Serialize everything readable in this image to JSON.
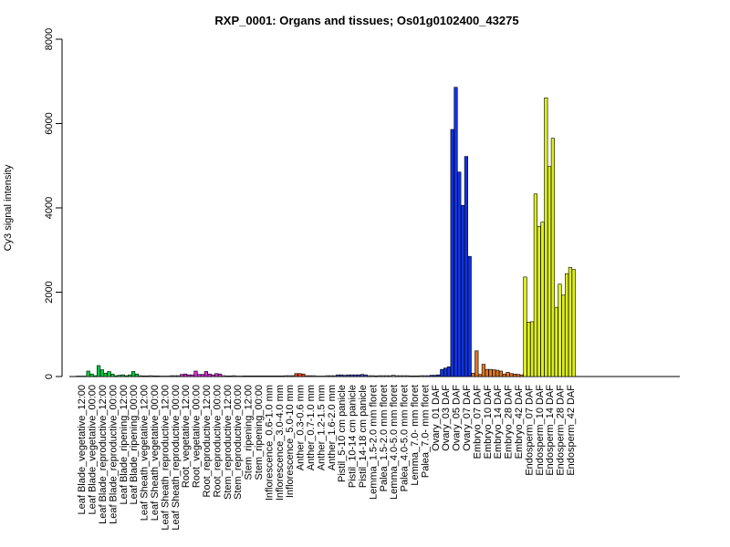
{
  "chart_data": {
    "type": "bar",
    "title": "RXP_0001: Organs and tissues; Os01g0102400_43275",
    "xlabel": "",
    "ylabel": "Cy3 signal intensity",
    "ylim": [
      0,
      8000
    ],
    "yticks": [
      0,
      2000,
      4000,
      6000,
      8000
    ],
    "grid": false,
    "legend": "none",
    "categories": [
      "Leaf Blade_vegetative_12:00",
      "Leaf Blade_vegetative_00:00",
      "Leaf Blade_reproductive_12:00",
      "Leaf Blade_reproductive_00:00",
      "Leaf Blade_ripening_12:00",
      "Leaf Blade_ripening_00:00",
      "Leaf Sheath_vegetative_12:00",
      "Leaf Sheath_vegetative_00:00",
      "Leaf Sheath_reproductive_12:00",
      "Leaf Sheath_reproductive_00:00",
      "Root_vegetative_12:00",
      "Root_vegetative_00:00",
      "Root_reproductive_12:00",
      "Root_reproductive_00:00",
      "Stem_reproductive_12:00",
      "Stem_reproductive_00:00",
      "Stem_ripening_12:00",
      "Stem_ripening_00:00",
      "Inflorescence_0.6-1.0 mm",
      "Inflorescence_3.0-4.0 mm",
      "Inflorescence_5.0-10 mm",
      "Anther_0.3-0.6 mm",
      "Anther_0.7-1.0 mm",
      "Anther_1.2-1.5 mm",
      "Anther_1.6-2.0 mm",
      "Pistil_5-10 cm panicle",
      "Pistil_10-14 cm panicle",
      "Pistil_14-18 cm panicle",
      "Lemma_1.5-2.0 mm floret",
      "Palea_1.5-2.0 mm floret",
      "Lemma_4.0-5.0 mm floret",
      "Palea_4.0-5.0 mm floret",
      "Lemma_7.0- mm floret",
      "Palea_7.0- mm floret",
      "Ovary_01 DAF",
      "Ovary_03 DAF",
      "Ovary_05 DAF",
      "Ovary_07 DAF",
      "Embryo_07 DAF",
      "Embryo_10 DAF",
      "Embryo_14 DAF",
      "Embryo_28 DAF",
      "Embryo_42 DAF",
      "Endosperm_07 DAF",
      "Endosperm_10 DAF",
      "Endosperm_14 DAF",
      "Endosperm_28 DAF",
      "Endosperm_42 DAF"
    ],
    "values": [
      [
        10,
        10,
        10
      ],
      [
        130,
        60,
        20
      ],
      [
        260,
        160,
        80
      ],
      [
        120,
        60,
        20
      ],
      [
        30,
        40,
        20
      ],
      [
        40,
        120,
        60
      ],
      [
        20,
        15,
        15
      ],
      [
        20,
        15,
        15
      ],
      [
        10,
        10,
        10
      ],
      [
        20,
        20,
        20
      ],
      [
        50,
        60,
        40
      ],
      [
        40,
        130,
        50
      ],
      [
        50,
        120,
        60
      ],
      [
        40,
        70,
        60
      ],
      [
        20,
        15,
        15
      ],
      [
        20,
        10,
        10
      ],
      [
        15,
        15,
        15
      ],
      [
        15,
        15,
        15
      ],
      [
        15,
        15,
        15
      ],
      [
        15,
        15,
        15
      ],
      [
        20,
        20,
        20
      ],
      [
        70,
        70,
        60
      ],
      [
        20,
        20,
        20
      ],
      [
        10,
        10,
        10
      ],
      [
        20,
        20,
        20
      ],
      [
        40,
        40,
        30
      ],
      [
        40,
        40,
        40
      ],
      [
        40,
        50,
        40
      ],
      [
        20,
        20,
        15
      ],
      [
        20,
        20,
        20
      ],
      [
        20,
        30,
        20
      ],
      [
        20,
        20,
        20
      ],
      [
        15,
        15,
        15
      ],
      [
        20,
        20,
        20
      ],
      [
        30,
        30,
        40
      ],
      [
        170,
        200,
        230
      ],
      [
        5860,
        6860,
        4850
      ],
      [
        4060,
        5220,
        2850
      ],
      [
        80,
        610,
        50
      ],
      [
        290,
        170,
        170
      ],
      [
        160,
        150,
        130
      ],
      [
        60,
        100,
        70
      ],
      [
        60,
        50,
        40
      ],
      [
        2360,
        1290,
        1300
      ],
      [
        4330,
        3560,
        3660
      ],
      [
        6610,
        4980,
        5650
      ],
      [
        1640,
        2190,
        1930
      ],
      [
        2440,
        2590,
        2540
      ]
    ],
    "bar_colors": [
      "#a9a9a9",
      "#00cc44",
      "#00cc44",
      "#00cc44",
      "#00cc44",
      "#00cc44",
      "#a9a9a9",
      "#a9a9a9",
      "#a9a9a9",
      "#a9a9a9",
      "#d02dd0",
      "#d02dd0",
      "#d02dd0",
      "#d02dd0",
      "#a9a9a9",
      "#a9a9a9",
      "#a9a9a9",
      "#a9a9a9",
      "#a9a9a9",
      "#a9a9a9",
      "#a9a9a9",
      "#dd4422",
      "#a9a9a9",
      "#a9a9a9",
      "#a9a9a9",
      "#4a4ac0",
      "#4a4ac0",
      "#4a4ac0",
      "#a9a9a9",
      "#a9a9a9",
      "#a9a9a9",
      "#a9a9a9",
      "#a9a9a9",
      "#a9a9a9",
      "#1133dd",
      "#1133dd",
      "#1133dd",
      "#1133dd",
      "#dd7722",
      "#dd7722",
      "#dd7722",
      "#dd7722",
      "#dd7722",
      "#ddee22",
      "#ddee22",
      "#ddee22",
      "#ddee22",
      "#ddee22"
    ]
  }
}
